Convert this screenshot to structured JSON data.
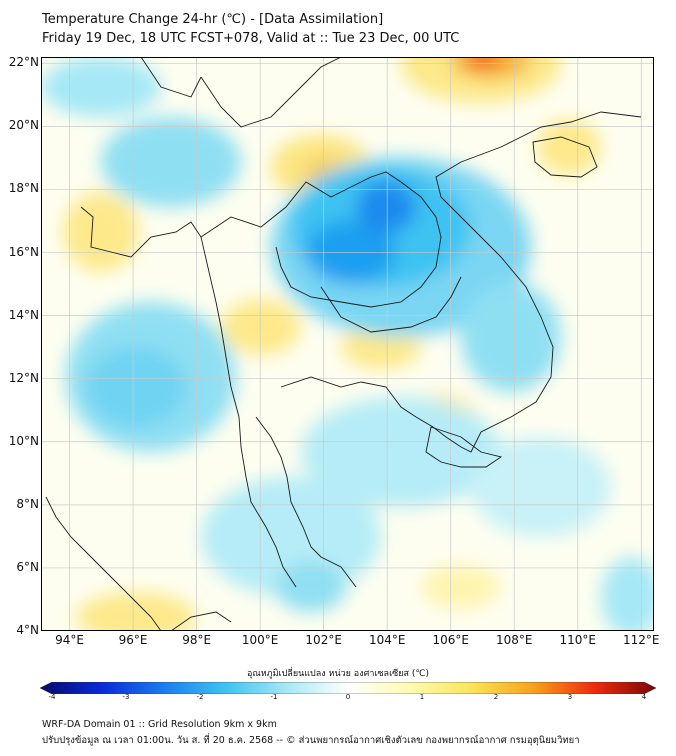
{
  "title": {
    "line1": "Temperature Change 24-hr (℃) - [Data Assimilation]",
    "line2": "Friday 19 Dec, 18 UTC FCST+078, Valid at :: Tue 23 Dec, 00 UTC"
  },
  "map": {
    "lat_labels": [
      "22°N",
      "20°N",
      "18°N",
      "16°N",
      "14°N",
      "12°N",
      "10°N",
      "8°N",
      "6°N",
      "4°N"
    ],
    "lon_labels": [
      "94°E",
      "96°E",
      "98°E",
      "100°E",
      "102°E",
      "104°E",
      "106°E",
      "108°E",
      "110°E",
      "112°E"
    ],
    "lat_range": [
      4,
      22.2
    ],
    "lon_range": [
      93.1,
      112.4
    ],
    "gridlines": true,
    "background_color": "#fdfef0"
  },
  "colorbar": {
    "title": "อุณหภูมิเปลี่ยนแปลง หน่วย องศาเซลเซียส (℃)",
    "ticks": [
      "-4",
      "-3",
      "-2",
      "-1",
      "0",
      "1",
      "2",
      "3",
      "4"
    ],
    "range": [
      -4,
      4
    ],
    "colors": [
      "#08086b",
      "#0a2ad8",
      "#1b7cf0",
      "#3ec2f2",
      "#a6e8f6",
      "#ffffff",
      "#fffbb0",
      "#fbe45a",
      "#f7a21a",
      "#ef2b0d",
      "#7a0706"
    ]
  },
  "footer": {
    "line1": "WRF-DA Domain 01 :: Grid Resolution 9km x 9km",
    "line2": "ปรับปรุงข้อมูล ณ เวลา 01:00น. วัน ส. ที่ 20 ธ.ค. 2568 -- © ส่วนพยากรณ์อากาศเชิงตัวเลข กองพยากรณ์อากาศ กรมอุตุนิยมวิทยา"
  }
}
